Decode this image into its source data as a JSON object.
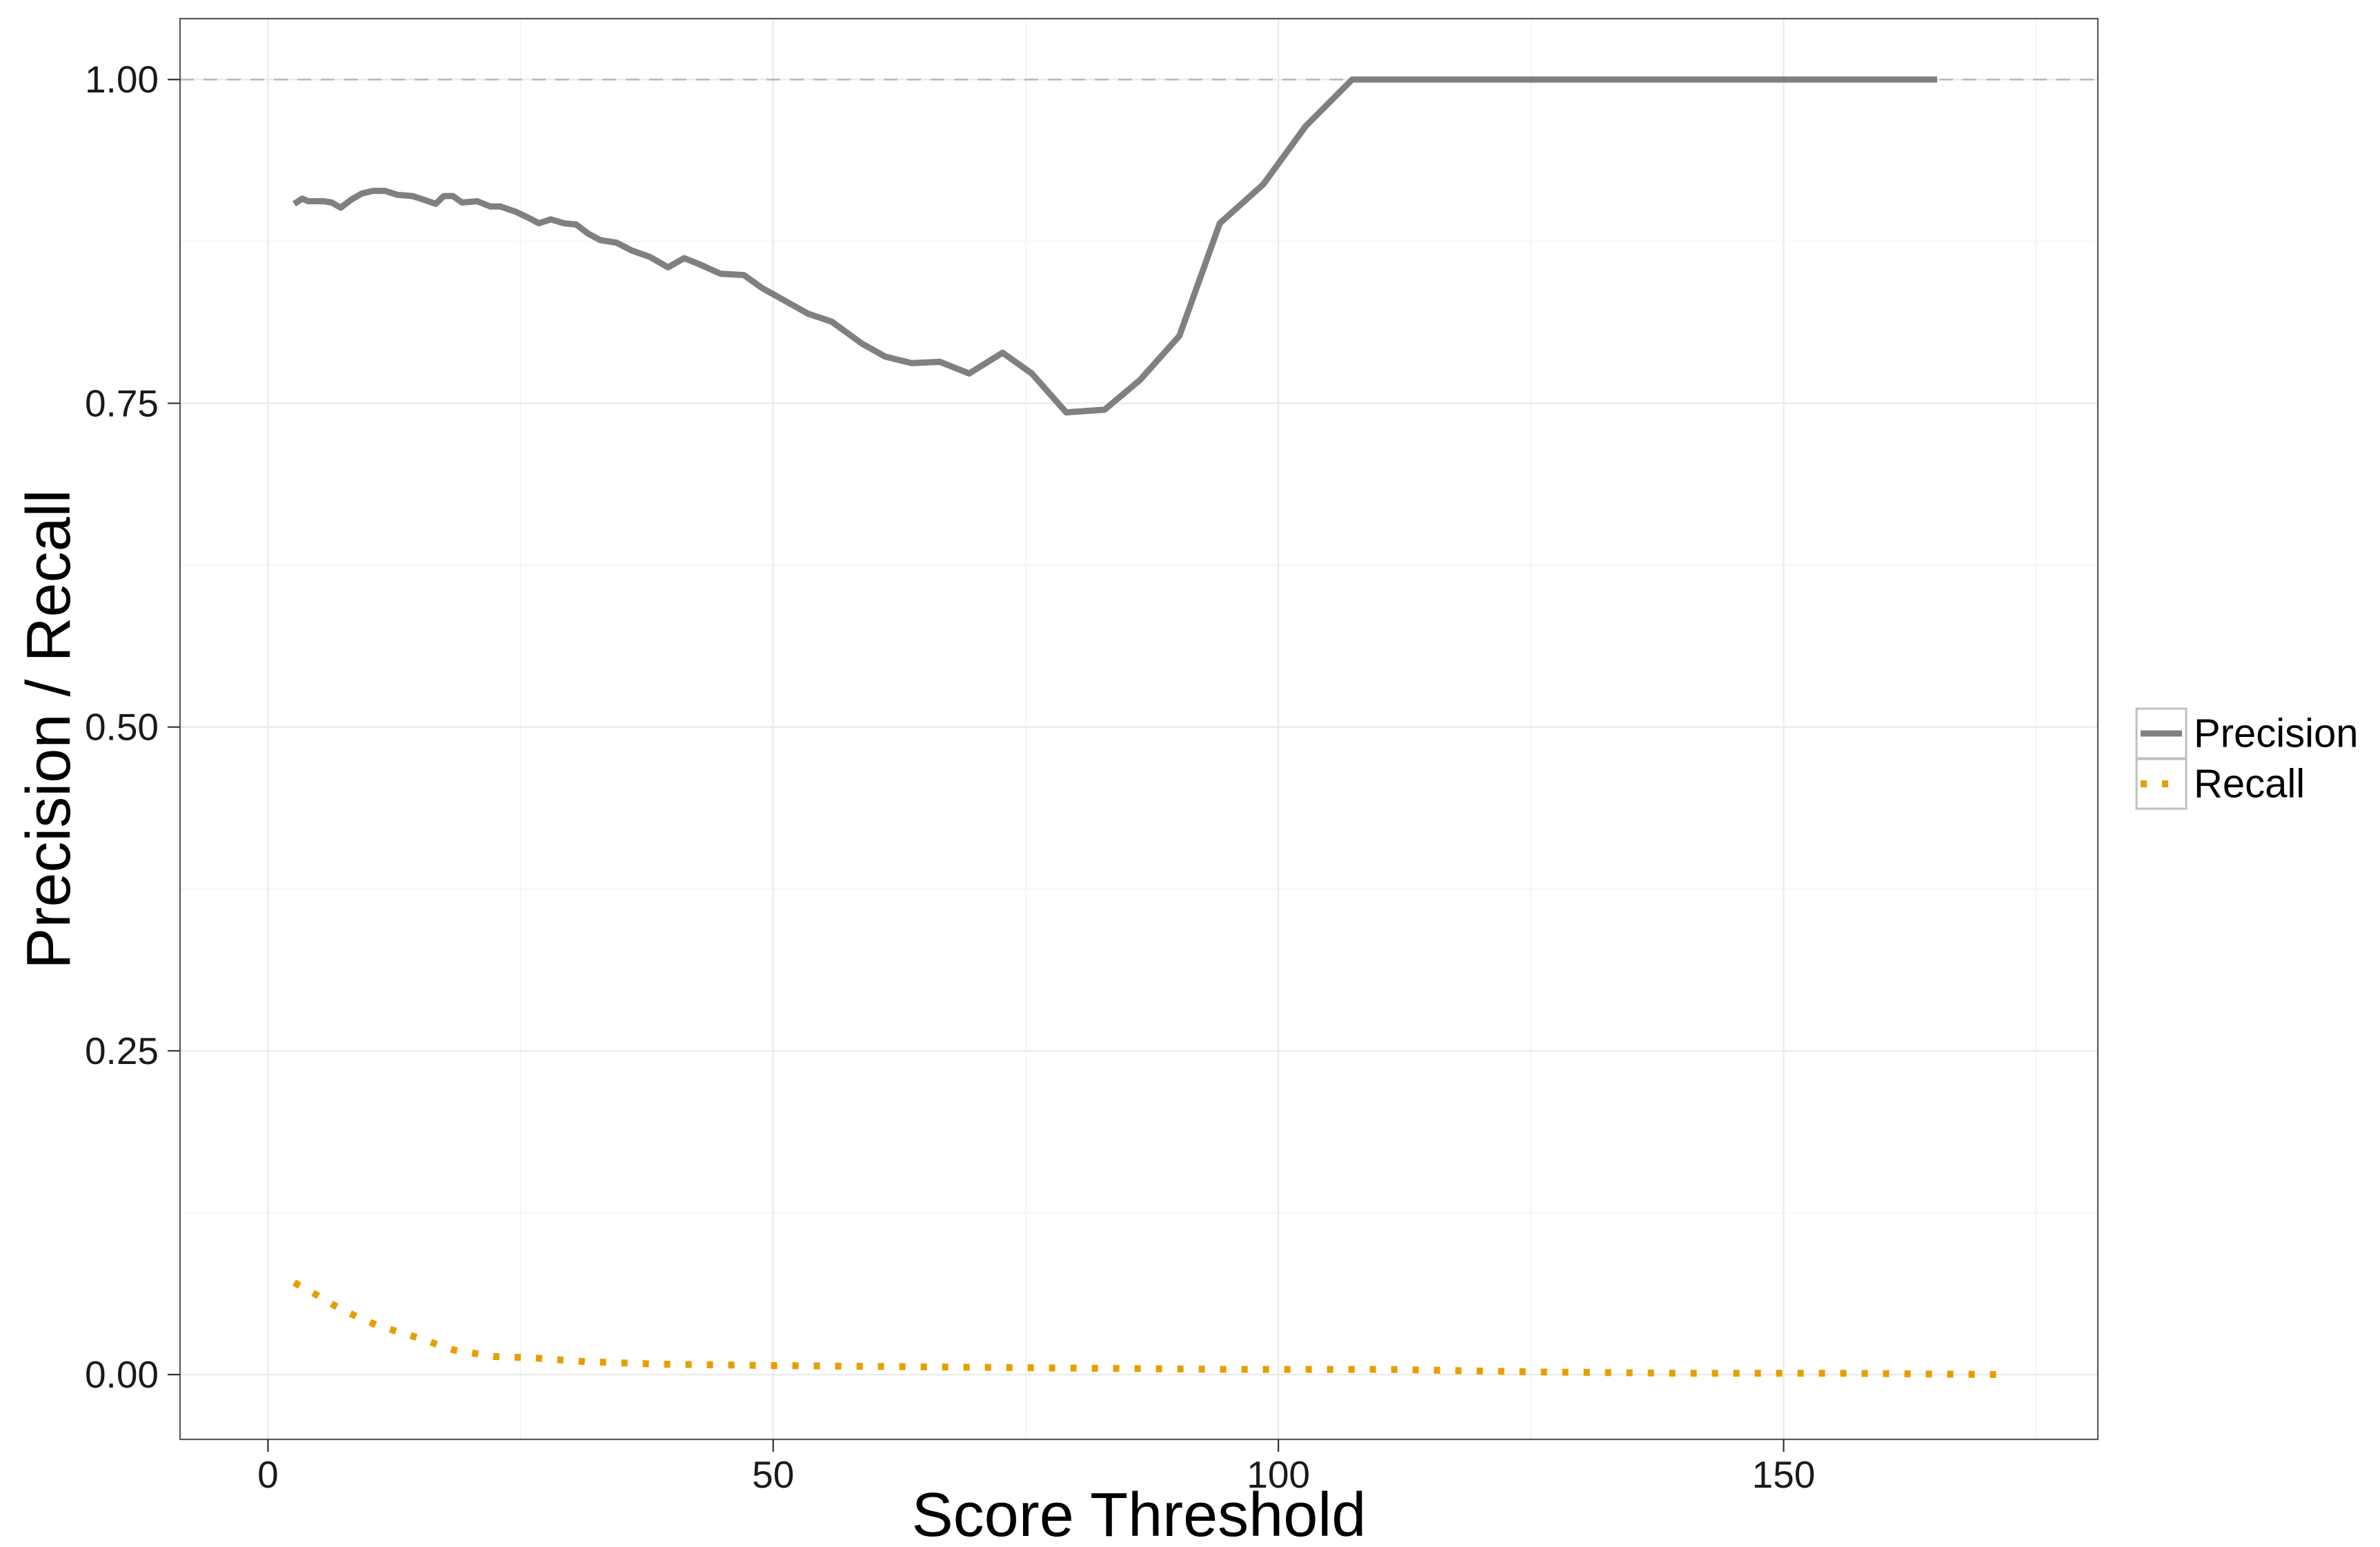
{
  "chart_data": {
    "type": "line",
    "xlabel": "Score Threshold",
    "ylabel": "Precision / Recall",
    "xlim": [
      -8.7,
      181.1
    ],
    "ylim": [
      -0.05,
      1.047
    ],
    "x_ticks": [
      0,
      50,
      100,
      150
    ],
    "x_tick_labels": [
      "0",
      "50",
      "100",
      "150"
    ],
    "y_ticks": [
      0,
      0.25,
      0.5,
      0.75,
      1
    ],
    "y_tick_labels": [
      "0.00",
      "0.25",
      "0.50",
      "0.75",
      "1.00"
    ],
    "grid": true,
    "legend_position": "right",
    "reference_lines": [
      {
        "y": 1.0,
        "style": "dashed",
        "color": "#BBBBBB"
      }
    ],
    "series": [
      {
        "name": "Precision",
        "color": "#808080",
        "line_style": "solid",
        "points": [
          [
            2.6,
            0.904
          ],
          [
            3.4,
            0.908
          ],
          [
            4.0,
            0.906
          ],
          [
            5.5,
            0.906
          ],
          [
            6.3,
            0.905
          ],
          [
            7.2,
            0.901
          ],
          [
            8.2,
            0.907
          ],
          [
            9.3,
            0.912
          ],
          [
            10.4,
            0.914
          ],
          [
            11.6,
            0.914
          ],
          [
            12.8,
            0.911
          ],
          [
            14.3,
            0.91
          ],
          [
            15.5,
            0.907
          ],
          [
            16.6,
            0.904
          ],
          [
            17.4,
            0.91
          ],
          [
            18.3,
            0.91
          ],
          [
            19.2,
            0.905
          ],
          [
            20.7,
            0.906
          ],
          [
            22.0,
            0.902
          ],
          [
            23.0,
            0.902
          ],
          [
            24.5,
            0.898
          ],
          [
            26.1,
            0.892
          ],
          [
            26.8,
            0.889
          ],
          [
            28.0,
            0.892
          ],
          [
            29.3,
            0.889
          ],
          [
            30.5,
            0.888
          ],
          [
            31.7,
            0.881
          ],
          [
            32.9,
            0.876
          ],
          [
            34.5,
            0.874
          ],
          [
            36.0,
            0.868
          ],
          [
            37.8,
            0.863
          ],
          [
            39.6,
            0.855
          ],
          [
            41.2,
            0.862
          ],
          [
            42.8,
            0.857
          ],
          [
            44.8,
            0.85
          ],
          [
            47.1,
            0.849
          ],
          [
            48.9,
            0.839
          ],
          [
            51.2,
            0.829
          ],
          [
            53.5,
            0.819
          ],
          [
            55.8,
            0.813
          ],
          [
            58.8,
            0.796
          ],
          [
            61.1,
            0.786
          ],
          [
            63.7,
            0.781
          ],
          [
            66.5,
            0.782
          ],
          [
            69.4,
            0.773
          ],
          [
            72.7,
            0.789
          ],
          [
            75.6,
            0.773
          ],
          [
            79.0,
            0.743
          ],
          [
            82.8,
            0.745
          ],
          [
            86.3,
            0.768
          ],
          [
            90.2,
            0.802
          ],
          [
            94.2,
            0.889
          ],
          [
            98.5,
            0.919
          ],
          [
            102.7,
            0.964
          ],
          [
            107.3,
            1.0
          ],
          [
            165.2,
            1.0
          ]
        ]
      },
      {
        "name": "Recall",
        "color": "#E69F00",
        "line_style": "dotted",
        "points": [
          [
            2.6,
            0.071
          ],
          [
            4.7,
            0.062
          ],
          [
            7.3,
            0.05
          ],
          [
            10.8,
            0.038
          ],
          [
            14.6,
            0.029
          ],
          [
            18.4,
            0.019
          ],
          [
            22.3,
            0.014
          ],
          [
            26.1,
            0.013
          ],
          [
            31.4,
            0.01
          ],
          [
            39.0,
            0.008
          ],
          [
            49.7,
            0.007
          ],
          [
            64.9,
            0.006
          ],
          [
            80.2,
            0.005
          ],
          [
            95.4,
            0.004
          ],
          [
            110.7,
            0.004
          ],
          [
            125.9,
            0.002
          ],
          [
            141.2,
            0.001
          ],
          [
            156.4,
            0.001
          ],
          [
            172.4,
            0.0
          ]
        ]
      }
    ]
  }
}
